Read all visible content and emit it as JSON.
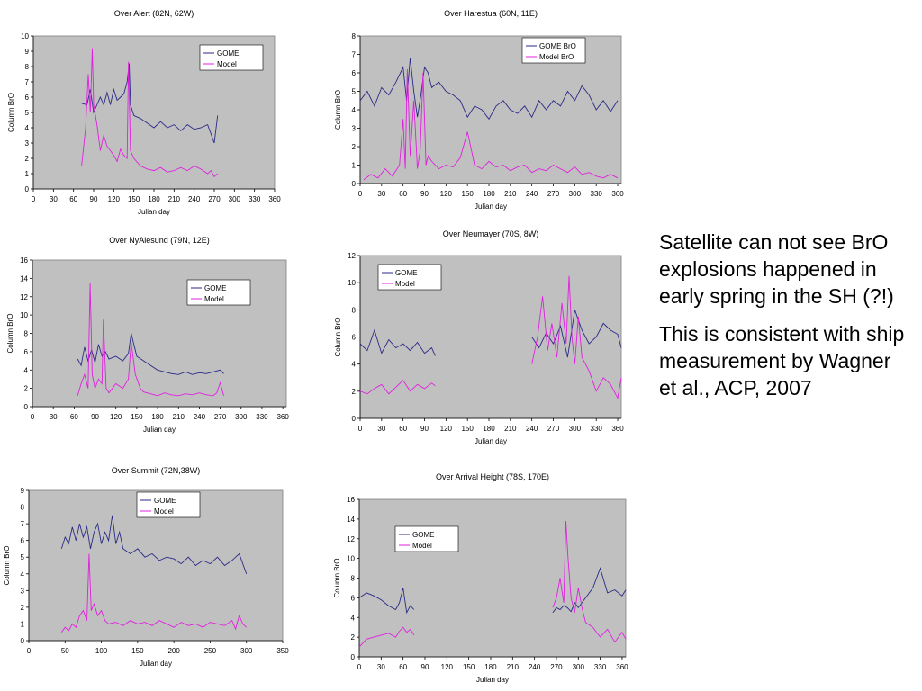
{
  "chart_data": [
    {
      "id": "alert",
      "type": "line",
      "title": "Over Alert (82N, 62W)",
      "xlabel": "Julian day",
      "ylabel": "Column BrO",
      "xlim": [
        0,
        360
      ],
      "ylim": [
        0,
        10
      ],
      "xticks": [
        0,
        30,
        60,
        90,
        120,
        150,
        180,
        210,
        240,
        270,
        300,
        330,
        360
      ],
      "yticks": [
        0,
        1,
        2,
        3,
        4,
        5,
        6,
        7,
        8,
        9,
        10
      ],
      "grid": false,
      "legend": "top-right",
      "series": [
        {
          "name": "GOME",
          "color": "#2a2a86",
          "x": [
            72,
            80,
            85,
            90,
            95,
            100,
            105,
            110,
            115,
            120,
            125,
            130,
            135,
            140,
            143,
            145,
            150,
            160,
            170,
            180,
            190,
            200,
            210,
            220,
            230,
            240,
            250,
            260,
            270,
            275
          ],
          "y": [
            5.6,
            5.5,
            6.5,
            5.0,
            5.5,
            6.0,
            5.5,
            6.3,
            5.5,
            6.5,
            5.8,
            6.0,
            6.2,
            7.0,
            8.2,
            5.5,
            4.8,
            4.6,
            4.3,
            4.0,
            4.4,
            4.0,
            4.2,
            3.8,
            4.2,
            3.9,
            4.0,
            4.2,
            3.0,
            4.8
          ]
        },
        {
          "name": "Model",
          "color": "#e020e0",
          "x": [
            72,
            78,
            82,
            85,
            88,
            90,
            95,
            100,
            105,
            110,
            115,
            120,
            125,
            130,
            135,
            140,
            142,
            145,
            150,
            160,
            170,
            180,
            190,
            200,
            210,
            220,
            230,
            240,
            250,
            260,
            265,
            270,
            275
          ],
          "y": [
            1.5,
            4.0,
            7.5,
            5.0,
            9.2,
            5.5,
            4.2,
            2.5,
            3.5,
            2.8,
            2.5,
            2.2,
            1.8,
            2.6,
            2.2,
            2.0,
            8.3,
            2.5,
            2.0,
            1.5,
            1.3,
            1.2,
            1.4,
            1.1,
            1.2,
            1.4,
            1.2,
            1.5,
            1.3,
            1.0,
            1.2,
            0.8,
            1.0
          ]
        }
      ]
    },
    {
      "id": "harestua",
      "type": "line",
      "title": "Over Harestua (60N, 11E)",
      "xlabel": "Julian day",
      "ylabel": "Column BrO",
      "xlim": [
        0,
        365
      ],
      "ylim": [
        0,
        8
      ],
      "xticks": [
        0,
        30,
        60,
        90,
        120,
        150,
        180,
        210,
        240,
        270,
        300,
        330,
        360
      ],
      "yticks": [
        0,
        1,
        2,
        3,
        4,
        5,
        6,
        7,
        8
      ],
      "grid": false,
      "legend": "top-center",
      "series": [
        {
          "name": "GOME BrO",
          "color": "#2a2a86",
          "x": [
            0,
            10,
            20,
            30,
            40,
            50,
            60,
            65,
            70,
            75,
            80,
            85,
            90,
            95,
            100,
            110,
            120,
            130,
            140,
            150,
            160,
            170,
            180,
            190,
            200,
            210,
            220,
            230,
            240,
            250,
            260,
            270,
            280,
            290,
            300,
            310,
            320,
            330,
            340,
            350,
            360
          ],
          "y": [
            4.5,
            5.0,
            4.2,
            5.2,
            4.8,
            5.5,
            6.3,
            4.5,
            6.8,
            5.0,
            3.6,
            4.8,
            6.3,
            6.0,
            5.2,
            5.5,
            5.0,
            4.8,
            4.5,
            3.6,
            4.2,
            4.0,
            3.5,
            4.2,
            4.5,
            4.0,
            3.8,
            4.2,
            3.6,
            4.5,
            4.0,
            4.5,
            4.2,
            5.0,
            4.5,
            5.3,
            4.8,
            4.0,
            4.5,
            3.9,
            4.5
          ]
        },
        {
          "name": "Model BrO",
          "color": "#e020e0",
          "x": [
            5,
            15,
            25,
            35,
            45,
            55,
            60,
            63,
            66,
            70,
            75,
            80,
            84,
            88,
            92,
            95,
            100,
            110,
            120,
            130,
            140,
            150,
            160,
            170,
            180,
            190,
            200,
            210,
            220,
            230,
            240,
            250,
            260,
            270,
            280,
            290,
            300,
            310,
            320,
            330,
            340,
            350,
            360
          ],
          "y": [
            0.2,
            0.5,
            0.3,
            0.8,
            0.4,
            1.0,
            3.5,
            0.8,
            6.2,
            1.5,
            4.5,
            0.8,
            1.8,
            6.0,
            1.0,
            1.5,
            1.2,
            0.8,
            1.0,
            0.9,
            1.4,
            2.8,
            1.0,
            0.8,
            1.2,
            0.9,
            1.0,
            0.7,
            0.9,
            1.0,
            0.6,
            0.8,
            0.7,
            1.0,
            0.8,
            0.6,
            0.9,
            0.5,
            0.6,
            0.4,
            0.3,
            0.5,
            0.3
          ]
        }
      ]
    },
    {
      "id": "nyalesund",
      "type": "line",
      "title": "Over NyAlesund (79N, 12E)",
      "xlabel": "Julian day",
      "ylabel": "Column BrO",
      "xlim": [
        0,
        365
      ],
      "ylim": [
        0,
        16
      ],
      "xticks": [
        0,
        30,
        60,
        90,
        120,
        150,
        180,
        210,
        240,
        270,
        300,
        330,
        360
      ],
      "yticks": [
        0,
        2,
        4,
        6,
        8,
        10,
        12,
        14,
        16
      ],
      "grid": false,
      "legend": "top-right",
      "series": [
        {
          "name": "GOME",
          "color": "#2a2a86",
          "x": [
            65,
            70,
            75,
            80,
            85,
            90,
            95,
            100,
            105,
            110,
            120,
            130,
            138,
            142,
            150,
            160,
            170,
            180,
            190,
            200,
            210,
            220,
            230,
            240,
            250,
            260,
            270,
            275
          ],
          "y": [
            5.2,
            4.5,
            6.5,
            5.0,
            6.2,
            4.8,
            6.8,
            5.5,
            6.0,
            5.2,
            5.5,
            5.0,
            5.8,
            8.0,
            5.5,
            5.0,
            4.5,
            4.0,
            3.8,
            3.6,
            3.5,
            3.8,
            3.5,
            3.7,
            3.6,
            3.8,
            4.0,
            3.6
          ]
        },
        {
          "name": "Model",
          "color": "#e020e0",
          "x": [
            65,
            70,
            75,
            80,
            83,
            86,
            90,
            95,
            100,
            102,
            106,
            110,
            120,
            130,
            138,
            142,
            148,
            155,
            160,
            170,
            180,
            190,
            200,
            210,
            220,
            230,
            240,
            250,
            260,
            265,
            270,
            275
          ],
          "y": [
            1.2,
            2.5,
            3.5,
            2.0,
            13.5,
            3.5,
            2.0,
            3.0,
            2.5,
            9.5,
            2.0,
            1.5,
            2.5,
            2.0,
            3.0,
            7.0,
            3.5,
            2.0,
            1.6,
            1.4,
            1.2,
            1.5,
            1.3,
            1.2,
            1.4,
            1.3,
            1.5,
            1.3,
            1.2,
            1.5,
            2.6,
            1.2
          ]
        }
      ]
    },
    {
      "id": "neumayer",
      "type": "line",
      "title": "Over Neumayer (70S, 8W)",
      "xlabel": "Julian day",
      "ylabel": "Column BrO",
      "xlim": [
        0,
        365
      ],
      "ylim": [
        0,
        12
      ],
      "xticks": [
        0,
        30,
        60,
        90,
        120,
        150,
        180,
        210,
        240,
        270,
        300,
        330,
        360
      ],
      "yticks": [
        0,
        2,
        4,
        6,
        8,
        10,
        12
      ],
      "grid": false,
      "legend": "top-left",
      "series": [
        {
          "name": "GOME",
          "color": "#2a2a86",
          "x": [
            0,
            10,
            20,
            30,
            40,
            50,
            60,
            70,
            80,
            90,
            100,
            105,
            null,
            240,
            250,
            260,
            270,
            280,
            290,
            300,
            310,
            320,
            330,
            340,
            350,
            360,
            365
          ],
          "y": [
            5.5,
            5.0,
            6.5,
            4.8,
            5.8,
            5.2,
            5.5,
            5.0,
            5.6,
            4.8,
            5.2,
            4.6,
            null,
            6.0,
            5.2,
            6.3,
            5.5,
            6.8,
            4.5,
            8.0,
            6.5,
            5.5,
            6.0,
            7.0,
            6.5,
            6.2,
            5.2
          ],
          "gaps": true
        },
        {
          "name": "Model",
          "color": "#e020e0",
          "x": [
            0,
            10,
            20,
            30,
            40,
            50,
            60,
            70,
            80,
            90,
            100,
            105,
            null,
            240,
            248,
            255,
            262,
            268,
            275,
            282,
            288,
            292,
            296,
            300,
            305,
            310,
            320,
            330,
            340,
            350,
            360,
            365
          ],
          "y": [
            2.0,
            1.8,
            2.2,
            2.5,
            1.8,
            2.3,
            2.8,
            2.0,
            2.5,
            2.2,
            2.6,
            2.4,
            null,
            4.0,
            6.0,
            9.0,
            5.0,
            7.0,
            4.5,
            8.5,
            5.5,
            10.5,
            6.0,
            4.0,
            7.5,
            4.5,
            3.5,
            2.0,
            3.0,
            2.5,
            1.5,
            3.0
          ],
          "gaps": true
        }
      ]
    },
    {
      "id": "summit",
      "type": "line",
      "title": "Over Summit (72N,38W)",
      "xlabel": "Julian day",
      "ylabel": "Column BrO",
      "xlim": [
        0,
        350
      ],
      "ylim": [
        0,
        9
      ],
      "xticks": [
        0,
        50,
        100,
        150,
        200,
        250,
        300,
        350
      ],
      "yticks": [
        0,
        1,
        2,
        3,
        4,
        5,
        6,
        7,
        8,
        9
      ],
      "grid": false,
      "legend": "top-center",
      "series": [
        {
          "name": "GOME",
          "color": "#2a2a86",
          "x": [
            45,
            50,
            55,
            60,
            65,
            70,
            75,
            80,
            85,
            90,
            95,
            100,
            105,
            110,
            115,
            120,
            125,
            130,
            140,
            150,
            160,
            170,
            180,
            190,
            200,
            210,
            220,
            230,
            240,
            250,
            260,
            270,
            280,
            290,
            295,
            300
          ],
          "y": [
            5.5,
            6.2,
            5.8,
            6.8,
            6.0,
            7.0,
            6.2,
            6.8,
            5.5,
            6.5,
            7.0,
            5.8,
            6.5,
            6.0,
            7.5,
            5.8,
            6.5,
            5.5,
            5.2,
            5.5,
            5.0,
            5.2,
            4.8,
            5.0,
            4.9,
            4.6,
            5.0,
            4.5,
            4.8,
            4.6,
            5.0,
            4.5,
            4.8,
            5.2,
            4.6,
            4.0
          ]
        },
        {
          "name": "Model",
          "color": "#e020e0",
          "x": [
            45,
            50,
            55,
            60,
            65,
            70,
            75,
            80,
            83,
            86,
            90,
            95,
            100,
            105,
            110,
            120,
            130,
            140,
            150,
            160,
            170,
            180,
            190,
            200,
            210,
            220,
            230,
            240,
            250,
            260,
            270,
            280,
            285,
            290,
            295,
            300
          ],
          "y": [
            0.5,
            0.8,
            0.6,
            1.0,
            0.8,
            1.5,
            1.8,
            1.2,
            5.2,
            1.8,
            2.2,
            1.5,
            1.8,
            1.2,
            1.0,
            1.1,
            0.9,
            1.2,
            1.0,
            1.1,
            0.9,
            1.2,
            1.0,
            0.8,
            1.1,
            0.9,
            1.0,
            0.8,
            1.1,
            1.0,
            0.9,
            1.2,
            0.7,
            1.5,
            1.0,
            0.8
          ]
        }
      ]
    },
    {
      "id": "arrival",
      "type": "line",
      "title": "Over Arrival Height (78S, 170E)",
      "xlabel": "Julian day",
      "ylabel": "Column BrO",
      "xlim": [
        0,
        365
      ],
      "ylim": [
        0,
        16
      ],
      "xticks": [
        0,
        30,
        60,
        90,
        120,
        150,
        180,
        210,
        240,
        270,
        300,
        330,
        360
      ],
      "yticks": [
        0,
        2,
        4,
        6,
        8,
        10,
        12,
        14,
        16
      ],
      "grid": false,
      "legend": "top-left",
      "series": [
        {
          "name": "GOME",
          "color": "#2a2a86",
          "x": [
            0,
            10,
            20,
            30,
            40,
            50,
            55,
            60,
            65,
            70,
            75,
            null,
            265,
            270,
            275,
            280,
            285,
            290,
            295,
            300,
            310,
            320,
            330,
            340,
            350,
            360,
            365
          ],
          "y": [
            6.0,
            6.5,
            6.2,
            5.8,
            5.2,
            4.8,
            5.5,
            7.0,
            4.5,
            5.2,
            4.8,
            null,
            4.5,
            5.0,
            4.8,
            5.2,
            5.0,
            4.6,
            5.5,
            5.0,
            6.0,
            7.0,
            9.0,
            6.5,
            6.8,
            6.2,
            6.8
          ],
          "gaps": true
        },
        {
          "name": "Model",
          "color": "#e020e0",
          "x": [
            0,
            10,
            20,
            30,
            40,
            50,
            55,
            60,
            65,
            70,
            75,
            null,
            265,
            270,
            275,
            280,
            283,
            286,
            290,
            295,
            300,
            305,
            310,
            320,
            330,
            340,
            350,
            360,
            365
          ],
          "y": [
            1.0,
            1.8,
            2.0,
            2.2,
            2.4,
            2.0,
            2.6,
            3.0,
            2.5,
            2.8,
            2.2,
            null,
            5.0,
            6.0,
            8.0,
            5.5,
            13.8,
            10.0,
            6.0,
            4.5,
            7.0,
            5.0,
            3.5,
            3.0,
            2.0,
            2.8,
            1.5,
            2.5,
            1.8
          ],
          "gaps": true
        }
      ]
    }
  ],
  "side_text": {
    "paragraph1": "Satellite can not see BrO explosions happened in  early spring in the SH (?!)",
    "paragraph2": "This is consistent with ship measurement by Wagner et al., ACP, 2007"
  }
}
